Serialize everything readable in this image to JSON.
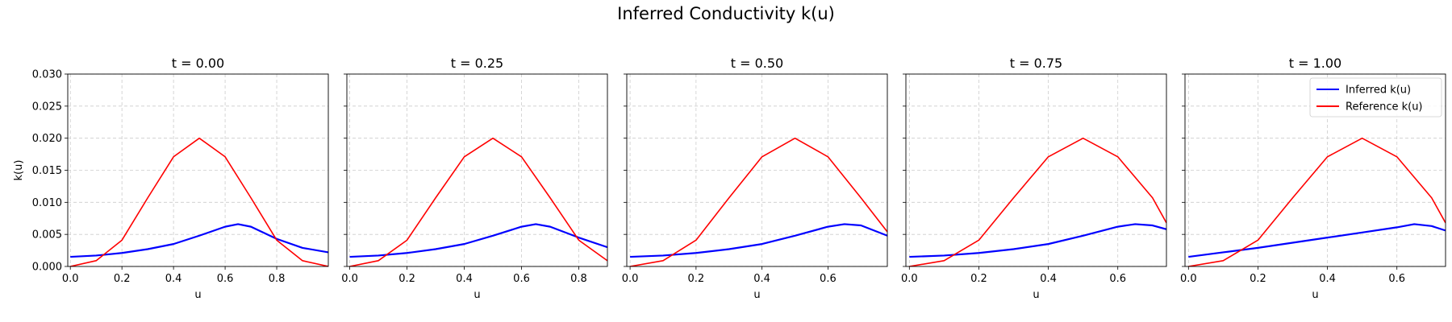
{
  "figure": {
    "suptitle": "Inferred Conductivity k(u)"
  },
  "colors": {
    "inferred": "#0000ff",
    "reference": "#ff0000",
    "grid": "#cccccc",
    "axis": "#000000"
  },
  "chart_data": [
    {
      "type": "line",
      "title": "t = 0.00",
      "xlabel": "u",
      "ylabel": "k(u)",
      "xlim": [
        -0.01,
        1.0
      ],
      "ylim": [
        0,
        0.03
      ],
      "xticks": [
        "0.0",
        "0.2",
        "0.4",
        "0.6",
        "0.8"
      ],
      "yticks": [
        "0.000",
        "0.005",
        "0.010",
        "0.015",
        "0.020",
        "0.025",
        "0.030"
      ],
      "grid": true,
      "legend": null,
      "series": [
        {
          "name": "Inferred k(u)",
          "color": "#0000ff",
          "x": [
            0.0,
            0.1,
            0.2,
            0.3,
            0.4,
            0.5,
            0.6,
            0.65,
            0.7,
            0.8,
            0.9,
            1.0
          ],
          "y": [
            0.0015,
            0.0017,
            0.0021,
            0.0027,
            0.0035,
            0.0048,
            0.0062,
            0.0066,
            0.0062,
            0.0043,
            0.0029,
            0.0022
          ]
        },
        {
          "name": "Reference k(u)",
          "color": "#ff0000",
          "x": [
            0.0,
            0.1,
            0.2,
            0.3,
            0.4,
            0.5,
            0.6,
            0.7,
            0.8,
            0.9,
            1.0
          ],
          "y": [
            0.0,
            0.0009,
            0.0041,
            0.0107,
            0.0171,
            0.02,
            0.0171,
            0.0107,
            0.0041,
            0.0009,
            0.0
          ]
        }
      ]
    },
    {
      "type": "line",
      "title": "t = 0.25",
      "xlabel": "u",
      "ylabel": "",
      "xlim": [
        -0.01,
        0.9
      ],
      "ylim": [
        0,
        0.03
      ],
      "xticks": [
        "0.0",
        "0.2",
        "0.4",
        "0.6",
        "0.8"
      ],
      "yticks": [],
      "grid": true,
      "legend": null,
      "series": [
        {
          "name": "Inferred k(u)",
          "color": "#0000ff",
          "x": [
            0.0,
            0.1,
            0.2,
            0.3,
            0.4,
            0.5,
            0.6,
            0.65,
            0.7,
            0.8,
            0.9
          ],
          "y": [
            0.0015,
            0.0017,
            0.0021,
            0.0027,
            0.0035,
            0.0048,
            0.0062,
            0.0066,
            0.0062,
            0.0045,
            0.003
          ]
        },
        {
          "name": "Reference k(u)",
          "color": "#ff0000",
          "x": [
            0.0,
            0.1,
            0.2,
            0.3,
            0.4,
            0.5,
            0.6,
            0.7,
            0.8,
            0.9
          ],
          "y": [
            0.0,
            0.0009,
            0.0041,
            0.0107,
            0.0171,
            0.02,
            0.0171,
            0.0107,
            0.0041,
            0.0009
          ]
        }
      ]
    },
    {
      "type": "line",
      "title": "t = 0.50",
      "xlabel": "u",
      "ylabel": "",
      "xlim": [
        -0.01,
        0.78
      ],
      "ylim": [
        0,
        0.03
      ],
      "xticks": [
        "0.0",
        "0.2",
        "0.4",
        "0.6"
      ],
      "yticks": [],
      "grid": true,
      "legend": null,
      "series": [
        {
          "name": "Inferred k(u)",
          "color": "#0000ff",
          "x": [
            0.0,
            0.1,
            0.2,
            0.3,
            0.4,
            0.5,
            0.6,
            0.65,
            0.7,
            0.78
          ],
          "y": [
            0.0015,
            0.0017,
            0.0021,
            0.0027,
            0.0035,
            0.0048,
            0.0062,
            0.0066,
            0.0064,
            0.0048
          ]
        },
        {
          "name": "Reference k(u)",
          "color": "#ff0000",
          "x": [
            0.0,
            0.1,
            0.2,
            0.3,
            0.4,
            0.5,
            0.6,
            0.7,
            0.78
          ],
          "y": [
            0.0,
            0.0009,
            0.0041,
            0.0107,
            0.0171,
            0.02,
            0.0171,
            0.0107,
            0.0054
          ]
        }
      ]
    },
    {
      "type": "line",
      "title": "t = 0.75",
      "xlabel": "u",
      "ylabel": "",
      "xlim": [
        -0.01,
        0.74
      ],
      "ylim": [
        0,
        0.03
      ],
      "xticks": [
        "0.0",
        "0.2",
        "0.4",
        "0.6"
      ],
      "yticks": [],
      "grid": true,
      "legend": null,
      "series": [
        {
          "name": "Inferred k(u)",
          "color": "#0000ff",
          "x": [
            0.0,
            0.1,
            0.2,
            0.3,
            0.4,
            0.5,
            0.6,
            0.65,
            0.7,
            0.74
          ],
          "y": [
            0.0015,
            0.0017,
            0.0021,
            0.0027,
            0.0035,
            0.0048,
            0.0062,
            0.0066,
            0.0064,
            0.0058
          ]
        },
        {
          "name": "Reference k(u)",
          "color": "#ff0000",
          "x": [
            0.0,
            0.1,
            0.2,
            0.3,
            0.4,
            0.5,
            0.6,
            0.7,
            0.74
          ],
          "y": [
            0.0,
            0.0009,
            0.0041,
            0.0107,
            0.0171,
            0.02,
            0.0171,
            0.0107,
            0.0068
          ]
        }
      ]
    },
    {
      "type": "line",
      "title": "t = 1.00",
      "xlabel": "u",
      "ylabel": "",
      "xlim": [
        -0.01,
        0.74
      ],
      "ylim": [
        0,
        0.03
      ],
      "xticks": [
        "0.0",
        "0.2",
        "0.4",
        "0.6"
      ],
      "yticks": [],
      "grid": true,
      "legend": "upper right",
      "series": [
        {
          "name": "Inferred k(u)",
          "color": "#0000ff",
          "x": [
            0.0,
            0.1,
            0.2,
            0.3,
            0.4,
            0.5,
            0.6,
            0.65,
            0.7,
            0.74
          ],
          "y": [
            0.0015,
            0.0022,
            0.0029,
            0.0037,
            0.0045,
            0.0053,
            0.0061,
            0.0066,
            0.0063,
            0.0056
          ]
        },
        {
          "name": "Reference k(u)",
          "color": "#ff0000",
          "x": [
            0.0,
            0.1,
            0.2,
            0.3,
            0.4,
            0.5,
            0.6,
            0.7,
            0.74
          ],
          "y": [
            0.0,
            0.0009,
            0.0041,
            0.0107,
            0.0171,
            0.02,
            0.0171,
            0.0107,
            0.0068
          ]
        }
      ]
    }
  ]
}
